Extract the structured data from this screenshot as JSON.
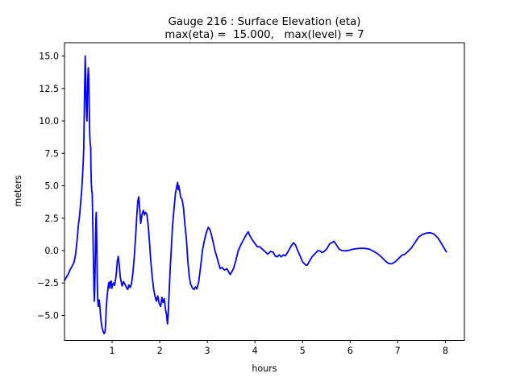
{
  "chart_data": {
    "type": "line",
    "title": "Gauge 216 : Surface Elevation (eta)",
    "subtitle": "max(eta) =  15.000,   max(level) = 7",
    "xlabel": "hours",
    "ylabel": "meters",
    "xlim": [
      0,
      8.4
    ],
    "ylim": [
      -6.92,
      16.04
    ],
    "xticks": [
      1,
      2,
      3,
      4,
      5,
      6,
      7,
      8
    ],
    "yticks": [
      -5.0,
      -2.5,
      0.0,
      2.5,
      5.0,
      7.5,
      10.0,
      12.5,
      15.0
    ],
    "grid": false,
    "legend": null,
    "line_color": "#0000ff",
    "max_eta": "15.000",
    "max_level": "7",
    "series": [
      {
        "name": "eta",
        "points": [
          [
            0.0,
            -2.3
          ],
          [
            0.04,
            -2.05
          ],
          [
            0.08,
            -1.8
          ],
          [
            0.12,
            -1.45
          ],
          [
            0.16,
            -1.2
          ],
          [
            0.2,
            -0.9
          ],
          [
            0.23,
            -0.35
          ],
          [
            0.25,
            0.3
          ],
          [
            0.27,
            1.0
          ],
          [
            0.29,
            1.9
          ],
          [
            0.32,
            2.8
          ],
          [
            0.34,
            3.75
          ],
          [
            0.36,
            4.6
          ],
          [
            0.38,
            5.8
          ],
          [
            0.395,
            6.9
          ],
          [
            0.405,
            8.0
          ],
          [
            0.415,
            10.5
          ],
          [
            0.425,
            13.0
          ],
          [
            0.435,
            15.0
          ],
          [
            0.447,
            13.0
          ],
          [
            0.455,
            11.5
          ],
          [
            0.465,
            10.3
          ],
          [
            0.472,
            10.0
          ],
          [
            0.48,
            11.5
          ],
          [
            0.49,
            13.2
          ],
          [
            0.5,
            14.1
          ],
          [
            0.51,
            13.4
          ],
          [
            0.52,
            11.0
          ],
          [
            0.53,
            9.0
          ],
          [
            0.54,
            8.2
          ],
          [
            0.55,
            8.0
          ],
          [
            0.556,
            6.5
          ],
          [
            0.562,
            5.3
          ],
          [
            0.572,
            4.6
          ],
          [
            0.582,
            4.4
          ],
          [
            0.59,
            3.0
          ],
          [
            0.6,
            1.0
          ],
          [
            0.607,
            -0.5
          ],
          [
            0.615,
            -2.0
          ],
          [
            0.622,
            -3.3
          ],
          [
            0.628,
            -3.9
          ],
          [
            0.635,
            -3.0
          ],
          [
            0.643,
            -1.2
          ],
          [
            0.652,
            0.8
          ],
          [
            0.66,
            2.5
          ],
          [
            0.667,
            2.95
          ],
          [
            0.674,
            1.5
          ],
          [
            0.682,
            -0.8
          ],
          [
            0.69,
            -2.5
          ],
          [
            0.7,
            -3.9
          ],
          [
            0.71,
            -4.3
          ],
          [
            0.72,
            -4.1
          ],
          [
            0.73,
            -3.8
          ],
          [
            0.74,
            -4.2
          ],
          [
            0.755,
            -4.9
          ],
          [
            0.77,
            -5.5
          ],
          [
            0.79,
            -5.95
          ],
          [
            0.81,
            -6.2
          ],
          [
            0.83,
            -6.4
          ],
          [
            0.85,
            -6.3
          ],
          [
            0.865,
            -5.6
          ],
          [
            0.878,
            -4.4
          ],
          [
            0.89,
            -3.7
          ],
          [
            0.9,
            -3.4
          ],
          [
            0.92,
            -2.7
          ],
          [
            0.935,
            -2.45
          ],
          [
            0.95,
            -2.9
          ],
          [
            0.965,
            -2.4
          ],
          [
            0.98,
            -2.35
          ],
          [
            0.995,
            -2.9
          ],
          [
            1.01,
            -2.6
          ],
          [
            1.03,
            -2.5
          ],
          [
            1.05,
            -2.7
          ],
          [
            1.07,
            -2.3
          ],
          [
            1.09,
            -1.7
          ],
          [
            1.11,
            -0.8
          ],
          [
            1.13,
            -0.45
          ],
          [
            1.15,
            -1.1
          ],
          [
            1.17,
            -2.0
          ],
          [
            1.19,
            -2.4
          ],
          [
            1.21,
            -2.73
          ],
          [
            1.24,
            -2.4
          ],
          [
            1.27,
            -2.6
          ],
          [
            1.3,
            -2.85
          ],
          [
            1.33,
            -3.0
          ],
          [
            1.35,
            -2.65
          ],
          [
            1.38,
            -2.85
          ],
          [
            1.41,
            -2.5
          ],
          [
            1.44,
            -1.6
          ],
          [
            1.47,
            -0.3
          ],
          [
            1.5,
            1.5
          ],
          [
            1.52,
            2.8
          ],
          [
            1.54,
            3.8
          ],
          [
            1.56,
            4.15
          ],
          [
            1.58,
            3.2
          ],
          [
            1.6,
            2.1
          ],
          [
            1.63,
            2.8
          ],
          [
            1.655,
            3.1
          ],
          [
            1.68,
            2.75
          ],
          [
            1.7,
            2.95
          ],
          [
            1.73,
            2.8
          ],
          [
            1.76,
            1.9
          ],
          [
            1.79,
            0.4
          ],
          [
            1.81,
            -0.7
          ],
          [
            1.84,
            -1.9
          ],
          [
            1.87,
            -2.9
          ],
          [
            1.9,
            -3.5
          ],
          [
            1.93,
            -3.9
          ],
          [
            1.96,
            -3.5
          ],
          [
            1.99,
            -4.1
          ],
          [
            2.02,
            -4.3
          ],
          [
            2.045,
            -3.6
          ],
          [
            2.07,
            -4.0
          ],
          [
            2.095,
            -3.7
          ],
          [
            2.12,
            -4.5
          ],
          [
            2.145,
            -5.0
          ],
          [
            2.163,
            -5.65
          ],
          [
            2.18,
            -4.8
          ],
          [
            2.2,
            -3.0
          ],
          [
            2.22,
            -1.4
          ],
          [
            2.245,
            0.3
          ],
          [
            2.27,
            1.9
          ],
          [
            2.3,
            3.2
          ],
          [
            2.33,
            4.4
          ],
          [
            2.36,
            5.0
          ],
          [
            2.375,
            5.25
          ],
          [
            2.39,
            4.7
          ],
          [
            2.4,
            5.0
          ],
          [
            2.42,
            4.6
          ],
          [
            2.44,
            4.1
          ],
          [
            2.47,
            3.95
          ],
          [
            2.5,
            3.3
          ],
          [
            2.53,
            1.95
          ],
          [
            2.56,
            0.9
          ],
          [
            2.59,
            -0.75
          ],
          [
            2.62,
            -2.0
          ],
          [
            2.65,
            -2.6
          ],
          [
            2.69,
            -2.9
          ],
          [
            2.72,
            -3.0
          ],
          [
            2.75,
            -2.8
          ],
          [
            2.78,
            -2.95
          ],
          [
            2.82,
            -2.4
          ],
          [
            2.86,
            -1.2
          ],
          [
            2.9,
            0.05
          ],
          [
            2.94,
            0.8
          ],
          [
            2.98,
            1.4
          ],
          [
            3.02,
            1.8
          ],
          [
            3.05,
            1.65
          ],
          [
            3.08,
            1.3
          ],
          [
            3.12,
            0.7
          ],
          [
            3.16,
            0.0
          ],
          [
            3.2,
            -0.5
          ],
          [
            3.24,
            -1.0
          ],
          [
            3.27,
            -1.4
          ],
          [
            3.31,
            -1.3
          ],
          [
            3.36,
            -1.5
          ],
          [
            3.41,
            -1.4
          ],
          [
            3.48,
            -1.85
          ],
          [
            3.55,
            -1.4
          ],
          [
            3.6,
            -0.75
          ],
          [
            3.65,
            0.0
          ],
          [
            3.71,
            0.5
          ],
          [
            3.77,
            0.9
          ],
          [
            3.82,
            1.25
          ],
          [
            3.86,
            1.45
          ],
          [
            3.9,
            1.1
          ],
          [
            3.95,
            0.8
          ],
          [
            4.0,
            0.55
          ],
          [
            4.05,
            0.3
          ],
          [
            4.1,
            0.3
          ],
          [
            4.16,
            0.1
          ],
          [
            4.22,
            -0.1
          ],
          [
            4.27,
            -0.27
          ],
          [
            4.33,
            -0.06
          ],
          [
            4.38,
            -0.12
          ],
          [
            4.43,
            -0.43
          ],
          [
            4.47,
            -0.48
          ],
          [
            4.51,
            -0.33
          ],
          [
            4.55,
            -0.48
          ],
          [
            4.6,
            -0.33
          ],
          [
            4.64,
            -0.4
          ],
          [
            4.69,
            -0.12
          ],
          [
            4.75,
            0.29
          ],
          [
            4.81,
            0.6
          ],
          [
            4.85,
            0.45
          ],
          [
            4.89,
            0.08
          ],
          [
            4.95,
            -0.43
          ],
          [
            5.0,
            -0.85
          ],
          [
            5.06,
            -1.1
          ],
          [
            5.1,
            -1.12
          ],
          [
            5.14,
            -0.85
          ],
          [
            5.2,
            -0.48
          ],
          [
            5.26,
            -0.25
          ],
          [
            5.32,
            0.0
          ],
          [
            5.37,
            -0.04
          ],
          [
            5.41,
            -0.15
          ],
          [
            5.46,
            -0.05
          ],
          [
            5.51,
            0.15
          ],
          [
            5.57,
            0.52
          ],
          [
            5.62,
            0.62
          ],
          [
            5.66,
            0.72
          ],
          [
            5.71,
            0.45
          ],
          [
            5.77,
            0.11
          ],
          [
            5.83,
            0.0
          ],
          [
            5.9,
            -0.02
          ],
          [
            5.97,
            0.02
          ],
          [
            6.05,
            0.1
          ],
          [
            6.13,
            0.15
          ],
          [
            6.22,
            0.18
          ],
          [
            6.31,
            0.17
          ],
          [
            6.4,
            0.12
          ],
          [
            6.49,
            -0.05
          ],
          [
            6.58,
            -0.25
          ],
          [
            6.66,
            -0.5
          ],
          [
            6.74,
            -0.8
          ],
          [
            6.81,
            -1.0
          ],
          [
            6.88,
            -1.02
          ],
          [
            6.95,
            -0.85
          ],
          [
            7.02,
            -0.6
          ],
          [
            7.09,
            -0.35
          ],
          [
            7.14,
            -0.3
          ],
          [
            7.2,
            -0.12
          ],
          [
            7.28,
            0.18
          ],
          [
            7.36,
            0.6
          ],
          [
            7.44,
            1.05
          ],
          [
            7.52,
            1.25
          ],
          [
            7.6,
            1.35
          ],
          [
            7.68,
            1.38
          ],
          [
            7.76,
            1.28
          ],
          [
            7.84,
            1.0
          ],
          [
            7.9,
            0.65
          ],
          [
            7.96,
            0.28
          ],
          [
            8.02,
            -0.1
          ]
        ]
      }
    ]
  }
}
